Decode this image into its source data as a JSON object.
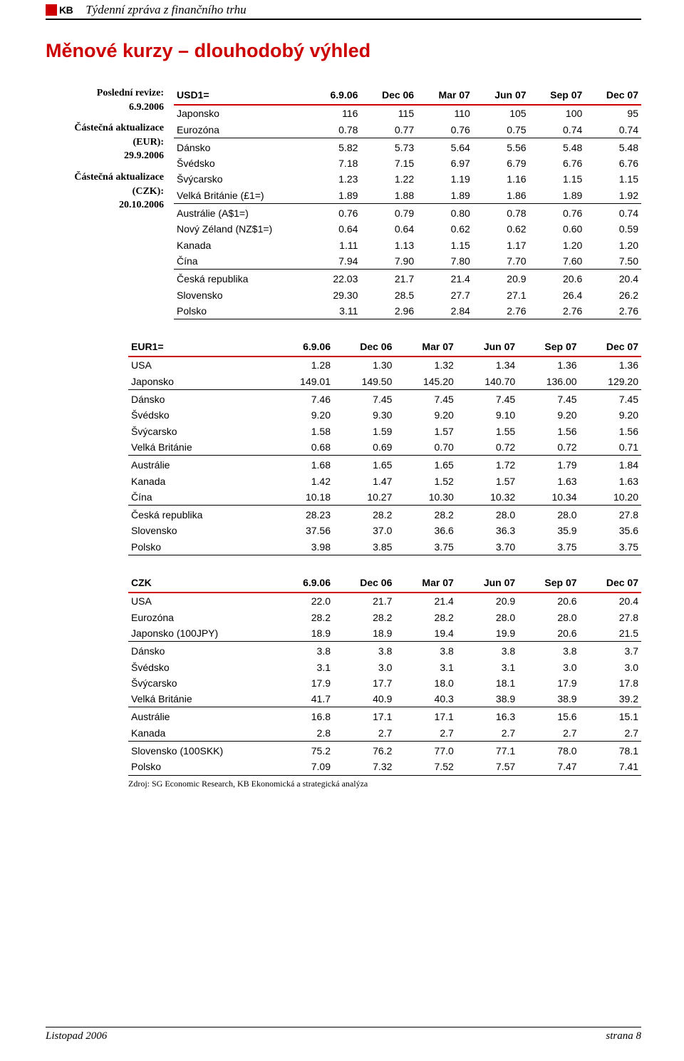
{
  "header": {
    "logo_text": "KB",
    "report_title": "Týdenní zpráva z finančního trhu"
  },
  "page_title": "Měnové kurzy – dlouhodobý výhled",
  "sidebar": {
    "last_revision_label": "Poslední revize:",
    "last_revision_date": "6.9.2006",
    "partial_update_eur_label": "Částečná aktualizace (EUR):",
    "partial_update_eur_date": "29.9.2006",
    "partial_update_czk_label": "Částečná aktualizace (CZK):",
    "partial_update_czk_date": "20.10.2006"
  },
  "tables": {
    "columns": [
      "6.9.06",
      "Dec 06",
      "Mar 07",
      "Jun 07",
      "Sep 07",
      "Dec 07"
    ],
    "usd": {
      "heading": "USD1=",
      "groups": [
        [
          {
            "label": "Japonsko",
            "v": [
              "116",
              "115",
              "110",
              "105",
              "100",
              "95"
            ]
          },
          {
            "label": "Eurozóna",
            "v": [
              "0.78",
              "0.77",
              "0.76",
              "0.75",
              "0.74",
              "0.74"
            ]
          }
        ],
        [
          {
            "label": "Dánsko",
            "v": [
              "5.82",
              "5.73",
              "5.64",
              "5.56",
              "5.48",
              "5.48"
            ]
          },
          {
            "label": "Švédsko",
            "v": [
              "7.18",
              "7.15",
              "6.97",
              "6.79",
              "6.76",
              "6.76"
            ]
          },
          {
            "label": "Švýcarsko",
            "v": [
              "1.23",
              "1.22",
              "1.19",
              "1.16",
              "1.15",
              "1.15"
            ]
          },
          {
            "label": "Velká Británie (£1=)",
            "v": [
              "1.89",
              "1.88",
              "1.89",
              "1.86",
              "1.89",
              "1.92"
            ]
          }
        ],
        [
          {
            "label": "Austrálie (A$1=)",
            "v": [
              "0.76",
              "0.79",
              "0.80",
              "0.78",
              "0.76",
              "0.74"
            ]
          },
          {
            "label": "Nový Zéland (NZ$1=)",
            "v": [
              "0.64",
              "0.64",
              "0.62",
              "0.62",
              "0.60",
              "0.59"
            ]
          },
          {
            "label": "Kanada",
            "v": [
              "1.11",
              "1.13",
              "1.15",
              "1.17",
              "1.20",
              "1.20"
            ]
          },
          {
            "label": "Čína",
            "v": [
              "7.94",
              "7.90",
              "7.80",
              "7.70",
              "7.60",
              "7.50"
            ]
          }
        ],
        [
          {
            "label": "Česká republika",
            "v": [
              "22.03",
              "21.7",
              "21.4",
              "20.9",
              "20.6",
              "20.4"
            ]
          },
          {
            "label": "Slovensko",
            "v": [
              "29.30",
              "28.5",
              "27.7",
              "27.1",
              "26.4",
              "26.2"
            ]
          },
          {
            "label": "Polsko",
            "v": [
              "3.11",
              "2.96",
              "2.84",
              "2.76",
              "2.76",
              "2.76"
            ]
          }
        ]
      ]
    },
    "eur": {
      "heading": "EUR1=",
      "groups": [
        [
          {
            "label": "USA",
            "v": [
              "1.28",
              "1.30",
              "1.32",
              "1.34",
              "1.36",
              "1.36"
            ]
          },
          {
            "label": "Japonsko",
            "v": [
              "149.01",
              "149.50",
              "145.20",
              "140.70",
              "136.00",
              "129.20"
            ]
          }
        ],
        [
          {
            "label": "Dánsko",
            "v": [
              "7.46",
              "7.45",
              "7.45",
              "7.45",
              "7.45",
              "7.45"
            ]
          },
          {
            "label": "Švédsko",
            "v": [
              "9.20",
              "9.30",
              "9.20",
              "9.10",
              "9.20",
              "9.20"
            ]
          },
          {
            "label": "Švýcarsko",
            "v": [
              "1.58",
              "1.59",
              "1.57",
              "1.55",
              "1.56",
              "1.56"
            ]
          },
          {
            "label": "Velká Británie",
            "v": [
              "0.68",
              "0.69",
              "0.70",
              "0.72",
              "0.72",
              "0.71"
            ]
          }
        ],
        [
          {
            "label": "Austrálie",
            "v": [
              "1.68",
              "1.65",
              "1.65",
              "1.72",
              "1.79",
              "1.84"
            ]
          },
          {
            "label": "Kanada",
            "v": [
              "1.42",
              "1.47",
              "1.52",
              "1.57",
              "1.63",
              "1.63"
            ]
          },
          {
            "label": "Čína",
            "v": [
              "10.18",
              "10.27",
              "10.30",
              "10.32",
              "10.34",
              "10.20"
            ]
          }
        ],
        [
          {
            "label": "Česká republika",
            "v": [
              "28.23",
              "28.2",
              "28.2",
              "28.0",
              "28.0",
              "27.8"
            ]
          },
          {
            "label": "Slovensko",
            "v": [
              "37.56",
              "37.0",
              "36.6",
              "36.3",
              "35.9",
              "35.6"
            ]
          },
          {
            "label": "Polsko",
            "v": [
              "3.98",
              "3.85",
              "3.75",
              "3.70",
              "3.75",
              "3.75"
            ]
          }
        ]
      ]
    },
    "czk": {
      "heading": "CZK",
      "groups": [
        [
          {
            "label": "USA",
            "v": [
              "22.0",
              "21.7",
              "21.4",
              "20.9",
              "20.6",
              "20.4"
            ]
          },
          {
            "label": "Eurozóna",
            "v": [
              "28.2",
              "28.2",
              "28.2",
              "28.0",
              "28.0",
              "27.8"
            ]
          },
          {
            "label": "Japonsko (100JPY)",
            "v": [
              "18.9",
              "18.9",
              "19.4",
              "19.9",
              "20.6",
              "21.5"
            ]
          }
        ],
        [
          {
            "label": "Dánsko",
            "v": [
              "3.8",
              "3.8",
              "3.8",
              "3.8",
              "3.8",
              "3.7"
            ]
          },
          {
            "label": "Švédsko",
            "v": [
              "3.1",
              "3.0",
              "3.1",
              "3.1",
              "3.0",
              "3.0"
            ]
          },
          {
            "label": "Švýcarsko",
            "v": [
              "17.9",
              "17.7",
              "18.0",
              "18.1",
              "17.9",
              "17.8"
            ]
          },
          {
            "label": "Velká Británie",
            "v": [
              "41.7",
              "40.9",
              "40.3",
              "38.9",
              "38.9",
              "39.2"
            ]
          }
        ],
        [
          {
            "label": "Austrálie",
            "v": [
              "16.8",
              "17.1",
              "17.1",
              "16.3",
              "15.6",
              "15.1"
            ]
          },
          {
            "label": "Kanada",
            "v": [
              "2.8",
              "2.7",
              "2.7",
              "2.7",
              "2.7",
              "2.7"
            ]
          }
        ],
        [
          {
            "label": "Slovensko (100SKK)",
            "v": [
              "75.2",
              "76.2",
              "77.0",
              "77.1",
              "78.0",
              "78.1"
            ]
          },
          {
            "label": "Polsko",
            "v": [
              "7.09",
              "7.32",
              "7.52",
              "7.57",
              "7.47",
              "7.41"
            ]
          }
        ]
      ]
    },
    "source": "Zdroj: SG Economic Research, KB Ekonomická a strategická analýza"
  },
  "footer": {
    "left": "Listopad 2006",
    "right": "strana 8"
  },
  "style": {
    "accent_color": "#cc0000",
    "border_color": "#000000",
    "col_widths_pct": [
      28,
      12,
      12,
      12,
      12,
      12,
      12
    ]
  }
}
